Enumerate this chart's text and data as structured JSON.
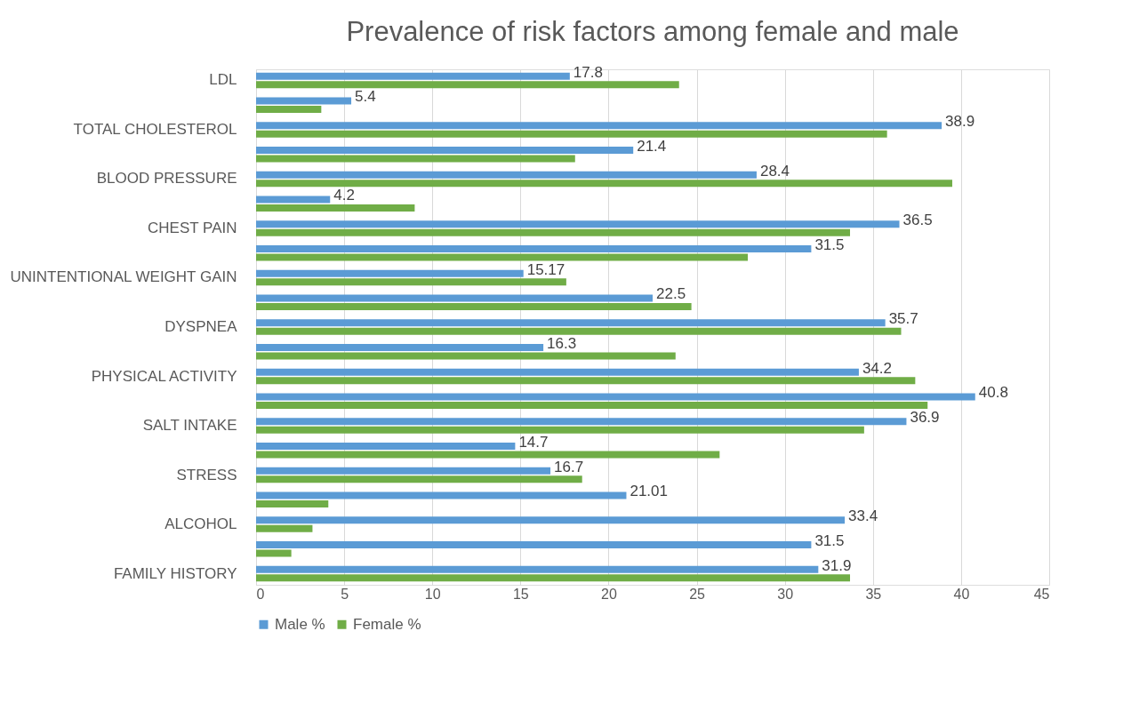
{
  "chart_data": {
    "type": "bar",
    "orientation": "horizontal",
    "title": "Prevalence of risk factors among female and male",
    "categories": [
      "LDL",
      null,
      "TOTAL CHOLESTEROL",
      null,
      "BLOOD PRESSURE",
      null,
      "CHEST PAIN",
      null,
      "UNINTENTIONAL WEIGHT GAIN",
      null,
      "DYSPNEA",
      null,
      "PHYSICAL ACTIVITY",
      null,
      "SALT INTAKE",
      null,
      "STRESS",
      null,
      "ALCOHOL",
      null,
      "FAMILY HISTORY"
    ],
    "series": [
      {
        "name": "Male %",
        "color": "#5b9bd5",
        "values": [
          17.8,
          5.4,
          38.9,
          21.4,
          28.4,
          4.2,
          36.5,
          31.5,
          15.17,
          22.5,
          35.7,
          16.3,
          34.2,
          40.8,
          36.9,
          14.7,
          16.7,
          21.01,
          33.4,
          31.5,
          31.9
        ],
        "value_labels": [
          "17.8",
          "5.4",
          "38.9",
          "21.4",
          "28.4",
          "4.2",
          "36.5",
          "31.5",
          "15.17",
          "22.5",
          "35.7",
          "16.3",
          "34.2",
          "40.8",
          "36.9",
          "14.7",
          "16.7",
          "21.01",
          "33.4",
          "31.5",
          "31.9"
        ]
      },
      {
        "name": "Female %",
        "color": "#70ad47",
        "values": [
          24.0,
          3.7,
          35.8,
          18.1,
          39.5,
          9.0,
          33.7,
          27.9,
          17.6,
          24.7,
          36.6,
          23.8,
          37.4,
          38.1,
          34.5,
          26.3,
          18.5,
          4.1,
          3.2,
          2.0,
          33.7
        ]
      }
    ],
    "xlim": [
      0,
      45
    ],
    "xticks": [
      0,
      5,
      10,
      15,
      20,
      25,
      30,
      35,
      40,
      45
    ],
    "grid": "x",
    "legend": "bottom"
  }
}
